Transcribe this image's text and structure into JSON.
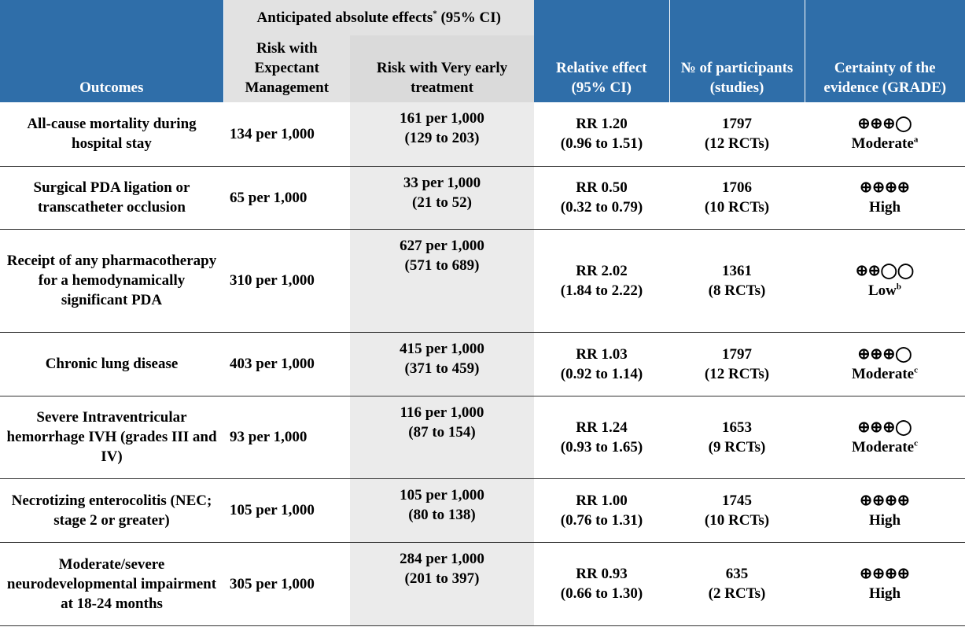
{
  "header": {
    "outcomes": "Outcomes",
    "anticipated": {
      "title": "Anticipated absolute effects",
      "footnote": "*",
      "suffix": "(95% CI)"
    },
    "risk_control": "Risk with Expectant Management",
    "risk_treatment": "Risk with Very early treatment",
    "relative": "Relative effect (95% CI)",
    "participants": "№ of participants (studies)",
    "certainty": "Certainty of the evidence (GRADE)"
  },
  "table": {
    "rows": [
      {
        "outcome": "All-cause mortality during hospital stay",
        "risk_control": "134 per 1,000",
        "risk_treatment": {
          "value": "161 per 1,000",
          "ci": "(129 to 203)"
        },
        "relative": {
          "value": "RR 1.20",
          "ci": "(0.96 to 1.51)"
        },
        "participants": {
          "n": "1797",
          "studies": "(12 RCTs)"
        },
        "certainty": {
          "symbols": "⊕⊕⊕◯",
          "rating": "Moderate",
          "footnote": "a"
        }
      },
      {
        "outcome": "Surgical PDA ligation or transcatheter occlusion",
        "risk_control": "65 per 1,000",
        "risk_treatment": {
          "value": "33 per 1,000",
          "ci": "(21 to 52)"
        },
        "relative": {
          "value": "RR 0.50",
          "ci": "(0.32 to 0.79)"
        },
        "participants": {
          "n": "1706",
          "studies": "(10 RCTs)"
        },
        "certainty": {
          "symbols": "⊕⊕⊕⊕",
          "rating": "High"
        }
      },
      {
        "outcome": "Receipt of any pharmacotherapy for a hemodynamically significant PDA",
        "risk_control": "310 per 1,000",
        "risk_treatment": {
          "value": "627 per 1,000",
          "ci": "(571 to 689)"
        },
        "relative": {
          "value": "RR 2.02",
          "ci": "(1.84 to 2.22)"
        },
        "participants": {
          "n": "1361",
          "studies": "(8 RCTs)"
        },
        "certainty": {
          "symbols": "⊕⊕◯◯",
          "rating": "Low",
          "footnote": "b"
        }
      },
      {
        "outcome": "Chronic lung disease",
        "risk_control": "403 per 1,000",
        "risk_treatment": {
          "value": "415 per 1,000",
          "ci": "(371 to 459)"
        },
        "relative": {
          "value": "RR 1.03",
          "ci": "(0.92 to 1.14)"
        },
        "participants": {
          "n": "1797",
          "studies": "(12 RCTs)"
        },
        "certainty": {
          "symbols": "⊕⊕⊕◯",
          "rating": "Moderate",
          "footnote": "c"
        }
      },
      {
        "outcome": "Severe Intraventricular hemorrhage IVH (grades III and IV)",
        "risk_control": "93 per 1,000",
        "risk_treatment": {
          "value": "116 per 1,000",
          "ci": "(87 to 154)"
        },
        "relative": {
          "value": "RR 1.24",
          "ci": "(0.93 to 1.65)"
        },
        "participants": {
          "n": "1653",
          "studies": "(9 RCTs)"
        },
        "certainty": {
          "symbols": "⊕⊕⊕◯",
          "rating": "Moderate",
          "footnote": "c"
        }
      },
      {
        "outcome": "Necrotizing enterocolitis (NEC; stage 2 or greater)",
        "risk_control": "105 per 1,000",
        "risk_treatment": {
          "value": "105 per 1,000",
          "ci": "(80 to 138)"
        },
        "relative": {
          "value": "RR 1.00",
          "ci": "(0.76 to 1.31)"
        },
        "participants": {
          "n": "1745",
          "studies": "(10 RCTs)"
        },
        "certainty": {
          "symbols": "⊕⊕⊕⊕",
          "rating": "High"
        }
      },
      {
        "outcome": "Moderate/severe neurodevelopmental impairment at 18-24 months",
        "risk_control": "305 per 1,000",
        "risk_treatment": {
          "value": "284 per 1,000",
          "ci": "(201 to 397)"
        },
        "relative": {
          "value": "RR 0.93",
          "ci": "(0.66 to 1.30)"
        },
        "participants": {
          "n": "635",
          "studies": "(2 RCTs)"
        },
        "certainty": {
          "symbols": "⊕⊕⊕⊕",
          "rating": "High"
        }
      }
    ]
  }
}
